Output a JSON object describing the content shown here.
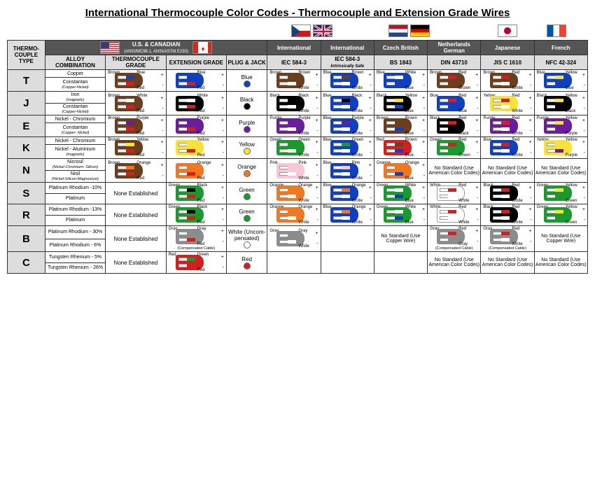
{
  "title": "International Thermocouple Color Codes - Thermocouple and Extension Grade Wires",
  "palette": {
    "brown": "#6b3e1e",
    "blue": "#1040c0",
    "red": "#d02020",
    "black": "#000000",
    "white": "#ffffff",
    "purple": "#6a1e9c",
    "yellow": "#f7e23a",
    "green": "#1a9a2e",
    "orange": "#f07820",
    "gray": "#8c8c8c",
    "pink": "#f9c6d6"
  },
  "headerFlags": [
    {
      "name": "czech",
      "colors": [
        "#11457e",
        "#ffffff",
        "#d7141a"
      ],
      "style": "cz"
    },
    {
      "name": "uk",
      "colors": [
        "#012169",
        "#ffffff",
        "#c8102e"
      ],
      "style": "uk"
    },
    {
      "name": "netherlands",
      "colors": [
        "#ae1c28",
        "#ffffff",
        "#21468b"
      ],
      "style": "h3"
    },
    {
      "name": "germany",
      "colors": [
        "#000000",
        "#dd0000",
        "#ffce00"
      ],
      "style": "h3"
    },
    {
      "name": "japan",
      "colors": [
        "#ffffff",
        "#bc002d"
      ],
      "style": "jp"
    },
    {
      "name": "france",
      "colors": [
        "#0055a4",
        "#ffffff",
        "#ef4135"
      ],
      "style": "v3"
    }
  ],
  "usFlags": [
    {
      "name": "usa",
      "style": "us"
    },
    {
      "name": "canada",
      "style": "ca"
    }
  ],
  "header1": {
    "us": "U.S. & CANADIAN",
    "us_sub": "(ANSI/MC96.1, ANSI/ASTM E230)",
    "intl1": "International",
    "intl2": "International",
    "cz": "Czech British",
    "nl": "Netherlands German",
    "jp": "Japanese",
    "fr": "French"
  },
  "header2": {
    "type": "THERMO-COUPLE TYPE",
    "alloy": "ALLOY COMBINATION",
    "tc": "THERMOCOUPLE GRADE",
    "ext": "EXTENSION GRADE",
    "plug": "PLUG & JACK",
    "iec1": "IEC 584-3",
    "iec2": "IEC 584-3",
    "iec2_sub": "Intrinsically Safe",
    "bs": "BS 1843",
    "din": "DIN 43710",
    "jis": "JIS C 1610",
    "nfc": "NFC 42-324"
  },
  "noStdAm": "No Standard (Use American Color Codes)",
  "noStdCu": "No Standard (Use Copper Wire)",
  "noneEst": "None Established",
  "compNote": "(Compensated Cable)",
  "rows": [
    {
      "type": "T",
      "alloy": [
        "Copper",
        "",
        "Constantan",
        "(Copper-Nickel)"
      ],
      "cells": [
        {
          "body": "brown",
          "l1": "blue",
          "l2": "red",
          "bl": "Brown",
          "t1": "Blue",
          "t2": "Red"
        },
        {
          "body": "blue",
          "l1": "blue",
          "l2": "red",
          "t1": "Blue",
          "t2": "Red"
        },
        {
          "plug": "Blue",
          "dot": "blue"
        },
        {
          "body": "brown",
          "l1": "brown",
          "l2": "white",
          "bl": "Brown",
          "t1": "Brown",
          "t2": "White"
        },
        {
          "body": "blue",
          "l1": "brown",
          "l2": "white",
          "bl": "Blue",
          "t1": "Brown",
          "t2": "White"
        },
        {
          "body": "blue",
          "l1": "white",
          "l2": "blue",
          "bl": "Blue",
          "t1": "White",
          "t2": "Blue"
        },
        {
          "body": "brown",
          "l1": "red",
          "l2": "brown",
          "bl": "Brown",
          "t1": "Red",
          "t2": "Brown"
        },
        {
          "body": "brown",
          "l1": "red",
          "l2": "white",
          "bl": "Brown",
          "t1": "Red",
          "t2": "White"
        },
        {
          "body": "blue",
          "l1": "yellow",
          "l2": "blue",
          "bl": "Blue",
          "t1": "Yellow",
          "t2": "Blue"
        }
      ]
    },
    {
      "type": "J",
      "alloy": [
        "Iron",
        "(magnetic)",
        "Constantan",
        "(Copper-Nickel)"
      ],
      "cells": [
        {
          "body": "brown",
          "l1": "white",
          "l2": "red",
          "bl": "Brown",
          "t1": "White",
          "t2": "Red"
        },
        {
          "body": "black",
          "l1": "white",
          "l2": "red",
          "t1": "White",
          "t2": "Red"
        },
        {
          "plug": "Black",
          "dot": "black"
        },
        {
          "body": "black",
          "l1": "black",
          "l2": "white",
          "bl": "Black",
          "t1": "Black",
          "t2": "White"
        },
        {
          "body": "blue",
          "l1": "black",
          "l2": "white",
          "bl": "Blue",
          "t1": "Black",
          "t2": "White"
        },
        {
          "body": "black",
          "l1": "yellow",
          "l2": "blue",
          "bl": "Black",
          "t1": "Yellow",
          "t2": "Blue"
        },
        {
          "body": "blue",
          "l1": "red",
          "l2": "blue",
          "bl": "Blue",
          "t1": "Red",
          "t2": "Blue"
        },
        {
          "body": "yellow",
          "l1": "red",
          "l2": "white",
          "bl": "Yellow",
          "t1": "Red",
          "t2": "White"
        },
        {
          "body": "black",
          "l1": "yellow",
          "l2": "black",
          "bl": "Black",
          "t1": "Yellow",
          "t2": "Black"
        }
      ]
    },
    {
      "type": "E",
      "alloy": [
        "Nickel - Chromium",
        "",
        "Constantan",
        "(Copper- Nickel)"
      ],
      "cells": [
        {
          "body": "brown",
          "l1": "purple",
          "l2": "red",
          "bl": "Brown",
          "t1": "Purple",
          "t2": "Red"
        },
        {
          "body": "purple",
          "l1": "purple",
          "l2": "red",
          "t1": "Purple",
          "t2": "Red"
        },
        {
          "plug": "Purple",
          "dot": "purple"
        },
        {
          "body": "purple",
          "l1": "purple",
          "l2": "white",
          "bl": "Purple",
          "t1": "Purple",
          "t2": "White"
        },
        {
          "body": "blue",
          "l1": "purple",
          "l2": "white",
          "bl": "Blue",
          "t1": "Purple",
          "t2": "White"
        },
        {
          "body": "brown",
          "l1": "brown",
          "l2": "blue",
          "bl": "Brown",
          "t1": "Brown",
          "t2": "Blue"
        },
        {
          "body": "black",
          "l1": "red",
          "l2": "black",
          "bl": "Black",
          "t1": "Red",
          "t2": "Black"
        },
        {
          "body": "purple",
          "l1": "red",
          "l2": "white",
          "bl": "Purple",
          "t1": "Red",
          "t2": "White"
        },
        {
          "body": "purple",
          "l1": "yellow",
          "l2": "purple",
          "bl": "Purple",
          "t1": "Yellow",
          "t2": "Purple"
        }
      ]
    },
    {
      "type": "K",
      "alloy": [
        "Nickel - Chromium",
        "",
        "Nickel - Aluminium",
        "(magnetic)"
      ],
      "cells": [
        {
          "body": "brown",
          "l1": "yellow",
          "l2": "red",
          "bl": "Brown",
          "t1": "Yellow",
          "t2": "Red"
        },
        {
          "body": "yellow",
          "l1": "yellow",
          "l2": "red",
          "t1": "Yellow",
          "t2": "Red"
        },
        {
          "plug": "Yellow",
          "dot": "yellow"
        },
        {
          "body": "green",
          "l1": "green",
          "l2": "white",
          "bl": "Green",
          "t1": "Green",
          "t2": "White"
        },
        {
          "body": "blue",
          "l1": "green",
          "l2": "white",
          "bl": "Blue",
          "t1": "Green",
          "t2": "White"
        },
        {
          "body": "red",
          "l1": "brown",
          "l2": "blue",
          "bl": "Red",
          "t1": "Brown",
          "t2": "Blue"
        },
        {
          "body": "green",
          "l1": "red",
          "l2": "green",
          "bl": "Green",
          "t1": "Red",
          "t2": "Green"
        },
        {
          "body": "blue",
          "l1": "red",
          "l2": "white",
          "bl": "Blue",
          "t1": "Red",
          "t2": "White"
        },
        {
          "body": "yellow",
          "l1": "yellow",
          "l2": "purple",
          "bl": "Yellow",
          "t1": "Yellow",
          "t2": "Purple"
        }
      ]
    },
    {
      "type": "N",
      "alloy": [
        "Nicrosil",
        "(Nickel-Chromium- Silicon)",
        "Nisil",
        "(Nickel-Silicon-Magnesium)"
      ],
      "cells": [
        {
          "body": "brown",
          "l1": "orange",
          "l2": "red",
          "bl": "Brown",
          "t1": "Orange",
          "t2": "Red"
        },
        {
          "body": "orange",
          "l1": "orange",
          "l2": "red",
          "t1": "Orange",
          "t2": "Red"
        },
        {
          "plug": "Orange",
          "dot": "orange"
        },
        {
          "body": "pink",
          "l1": "pink",
          "l2": "white",
          "bl": "Pink",
          "t1": "Pink",
          "t2": "White"
        },
        {
          "body": "blue",
          "l1": "pink",
          "l2": "white",
          "bl": "Blue",
          "t1": "Pink",
          "t2": "White"
        },
        {
          "body": "orange",
          "l1": "orange",
          "l2": "blue",
          "bl": "Orange",
          "t1": "Orange",
          "t2": "Blue"
        },
        {
          "nostd": "am"
        },
        {
          "nostd": "am"
        },
        {
          "nostd": "am"
        }
      ]
    },
    {
      "type": "S",
      "alloy": [
        "Platinum Rhodium -10%",
        "",
        "Platinum",
        ""
      ],
      "cells": [
        {
          "none": true
        },
        {
          "body": "green",
          "l1": "black",
          "l2": "red",
          "t1": "Black",
          "t2": "Red",
          "bl": "Green"
        },
        {
          "plug": "Green",
          "dot": "green"
        },
        {
          "body": "orange",
          "l1": "orange",
          "l2": "white",
          "bl": "Orange",
          "t1": "Orange",
          "t2": "White"
        },
        {
          "body": "blue",
          "l1": "orange",
          "l2": "white",
          "bl": "Blue",
          "t1": "Orange",
          "t2": "White"
        },
        {
          "body": "green",
          "l1": "white",
          "l2": "blue",
          "bl": "Green",
          "t1": "White",
          "t2": "Blue"
        },
        {
          "body": "white",
          "l1": "red",
          "l2": "white",
          "bl": "White",
          "t1": "Red",
          "t2": "White"
        },
        {
          "body": "black",
          "l1": "red",
          "l2": "white",
          "bl": "Black",
          "t1": "Red",
          "t2": "White"
        },
        {
          "body": "green",
          "l1": "yellow",
          "l2": "green",
          "bl": "Green",
          "t1": "Yellow",
          "t2": "Green"
        }
      ]
    },
    {
      "type": "R",
      "alloy": [
        "Platinum Rhodium -13%",
        "",
        "Platinum",
        ""
      ],
      "cells": [
        {
          "none": true
        },
        {
          "body": "green",
          "l1": "black",
          "l2": "red",
          "t1": "Black",
          "t2": "Red",
          "bl": "Green"
        },
        {
          "plug": "Green",
          "dot": "green"
        },
        {
          "body": "orange",
          "l1": "orange",
          "l2": "white",
          "bl": "Orange",
          "t1": "Orange",
          "t2": "White"
        },
        {
          "body": "blue",
          "l1": "orange",
          "l2": "white",
          "bl": "Blue",
          "t1": "Orange",
          "t2": "White"
        },
        {
          "body": "green",
          "l1": "white",
          "l2": "blue",
          "bl": "Green",
          "t1": "White",
          "t2": "Blue"
        },
        {
          "body": "white",
          "l1": "red",
          "l2": "white",
          "bl": "White",
          "t1": "Red",
          "t2": "White"
        },
        {
          "body": "black",
          "l1": "red",
          "l2": "white",
          "bl": "Black",
          "t1": "Red",
          "t2": "White"
        },
        {
          "body": "green",
          "l1": "yellow",
          "l2": "green",
          "bl": "Green",
          "t1": "Yellow",
          "t2": "Green"
        }
      ]
    },
    {
      "type": "B",
      "alloy": [
        "Platinum Rhodium - 30%",
        "",
        "Platinum Rhodium - 6%",
        ""
      ],
      "cells": [
        {
          "none": true
        },
        {
          "body": "gray",
          "l1": "gray",
          "l2": "red",
          "t1": "Gray",
          "t2": "Red",
          "bl": "Gray",
          "note": "comp"
        },
        {
          "plug": "White (Uncom-pensated)",
          "dot": "white"
        },
        {
          "body": "gray",
          "l1": "gray",
          "l2": "white",
          "bl": "Gray",
          "t1": "Gray",
          "t2": "White"
        },
        {
          "empty": true
        },
        {
          "nostd": "cu"
        },
        {
          "body": "gray",
          "l1": "red",
          "l2": "gray",
          "bl": "Gray",
          "t1": "Red",
          "t2": "Gray",
          "note": "comp"
        },
        {
          "body": "gray",
          "l1": "red",
          "l2": "white",
          "bl": "Gray",
          "t1": "Red",
          "t2": "White",
          "note": "comp"
        },
        {
          "nostd": "cu"
        }
      ]
    },
    {
      "type": "C",
      "alloy": [
        "Tungsten Rhenium - 5%",
        "",
        "Tungsten Rhenium - 26%",
        ""
      ],
      "cells": [
        {
          "none": true
        },
        {
          "body": "red",
          "l1": "green",
          "l2": "red",
          "t1": "Green",
          "t2": "Red",
          "bl": "Red"
        },
        {
          "plug": "Red",
          "dot": "red"
        },
        {
          "empty": true
        },
        {
          "empty": true
        },
        {
          "empty": true
        },
        {
          "nostd": "am"
        },
        {
          "nostd": "am"
        },
        {
          "nostd": "am"
        }
      ]
    }
  ]
}
